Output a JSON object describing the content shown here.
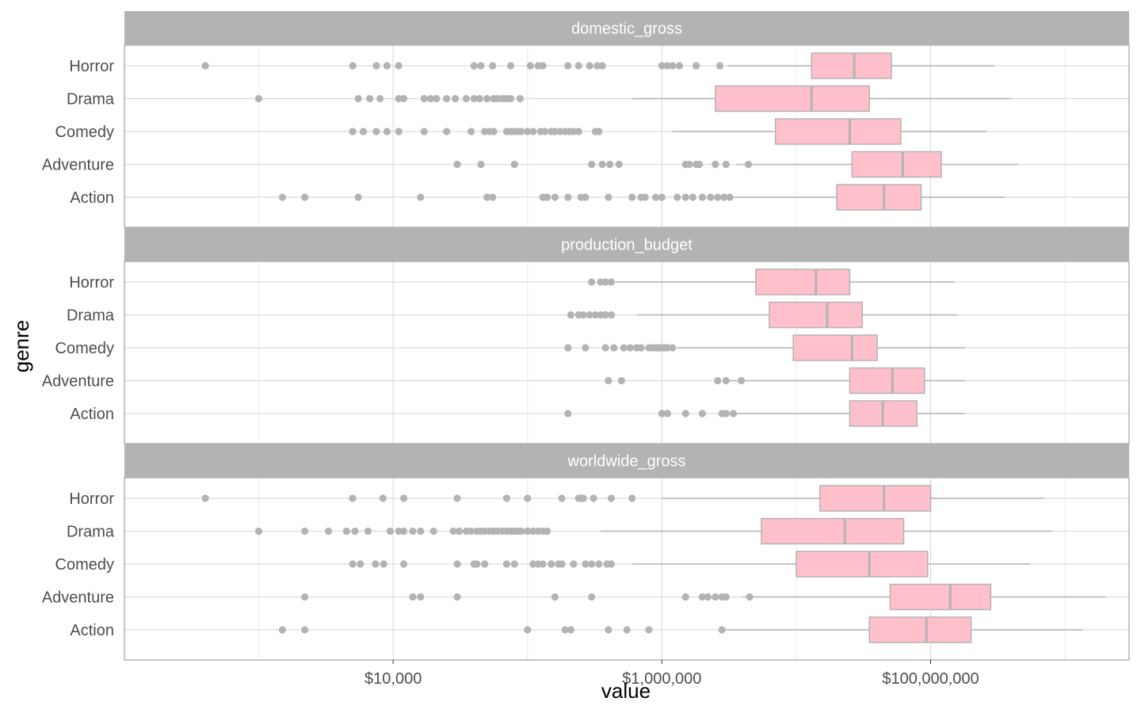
{
  "chart_data": {
    "type": "boxplot",
    "layout": "facets-stacked-vertically",
    "xlabel": "value",
    "ylabel": "genre",
    "x_scale": "log10",
    "x_range": [
      100,
      3000000000
    ],
    "x_ticks": [
      {
        "value": 10000,
        "label": "$10,000"
      },
      {
        "value": 1000000,
        "label": "$1,000,000"
      },
      {
        "value": 100000000,
        "label": "$100,000,000"
      }
    ],
    "x_minor_ticks": [
      1000,
      100000,
      10000000,
      1000000000
    ],
    "categories": [
      "Horror",
      "Drama",
      "Comedy",
      "Adventure",
      "Action"
    ],
    "grid": true,
    "colors": {
      "box_fill": "#FFC0CB",
      "box_line": "#B3B3B3",
      "point": "#B3B3B3",
      "strip": "#B3B3B3",
      "grid": "#DCDCDC",
      "panel_border": "#B3B3B3"
    },
    "facets": [
      {
        "name": "domestic_gross",
        "boxes": [
          {
            "genre": "Horror",
            "lower_whisker": 3100000,
            "q1": 13000000,
            "median": 27000000,
            "q3": 51000000,
            "upper_whisker": 300000000,
            "outliers": [
              400,
              5000,
              7500,
              9000,
              11000,
              40000,
              45000,
              55000,
              75000,
              105000,
              120000,
              130000,
              200000,
              240000,
              290000,
              330000,
              360000,
              1000000,
              1100000,
              1200000,
              1350000,
              1800000,
              2700000
            ]
          },
          {
            "genre": "Drama",
            "lower_whisker": 600000,
            "q1": 2500000,
            "median": 13000000,
            "q3": 35000000,
            "upper_whisker": 400000000,
            "outliers": [
              1000,
              5500,
              6700,
              8000,
              11000,
              12000,
              17000,
              19000,
              21000,
              25000,
              29000,
              35000,
              40000,
              44000,
              50000,
              56000,
              60000,
              65000,
              70000,
              75000,
              88000
            ]
          },
          {
            "genre": "Comedy",
            "lower_whisker": 1200000,
            "q1": 7000000,
            "median": 25000000,
            "q3": 60000000,
            "upper_whisker": 260000000,
            "outliers": [
              5000,
              6000,
              7500,
              9000,
              11000,
              17000,
              25000,
              38000,
              48000,
              52000,
              56000,
              70000,
              75000,
              80000,
              85000,
              90000,
              100000,
              110000,
              125000,
              135000,
              150000,
              160000,
              175000,
              190000,
              205000,
              220000,
              240000,
              320000,
              340000
            ]
          },
          {
            "genre": "Adventure",
            "lower_whisker": 3600000,
            "q1": 26000000,
            "median": 62000000,
            "q3": 120000000,
            "upper_whisker": 450000000,
            "outliers": [
              30000,
              45000,
              80000,
              300000,
              360000,
              410000,
              480000,
              1500000,
              1600000,
              1800000,
              1900000,
              2500000,
              3000000,
              4400000
            ]
          },
          {
            "genre": "Action",
            "lower_whisker": 2900000,
            "q1": 20000000,
            "median": 45000000,
            "q3": 85000000,
            "upper_whisker": 360000000,
            "outliers": [
              1500,
              2200,
              5500,
              16000,
              50000,
              55000,
              130000,
              140000,
              160000,
              200000,
              250000,
              270000,
              400000,
              600000,
              700000,
              750000,
              900000,
              1000000,
              1300000,
              1500000,
              1700000,
              2000000,
              2300000,
              2600000,
              2900000,
              3200000
            ]
          }
        ]
      },
      {
        "name": "production_budget",
        "boxes": [
          {
            "genre": "Horror",
            "lower_whisker": 450000,
            "q1": 5000000,
            "median": 14000000,
            "q3": 25000000,
            "upper_whisker": 150000000,
            "outliers": [
              300000,
              350000,
              380000,
              420000
            ]
          },
          {
            "genre": "Drama",
            "lower_whisker": 660000,
            "q1": 6300000,
            "median": 17000000,
            "q3": 31000000,
            "upper_whisker": 160000000,
            "outliers": [
              210000,
              240000,
              260000,
              290000,
              320000,
              350000,
              380000,
              420000
            ]
          },
          {
            "genre": "Comedy",
            "lower_whisker": 1300000,
            "q1": 9500000,
            "median": 26000000,
            "q3": 40000000,
            "upper_whisker": 180000000,
            "outliers": [
              200000,
              270000,
              380000,
              440000,
              520000,
              580000,
              650000,
              700000,
              800000,
              850000,
              900000,
              950000,
              1000000,
              1050000,
              1100000,
              1200000
            ]
          },
          {
            "genre": "Adventure",
            "lower_whisker": 3000000,
            "q1": 25000000,
            "median": 52000000,
            "q3": 90000000,
            "upper_whisker": 180000000,
            "outliers": [
              400000,
              500000,
              2600000,
              3000000,
              3900000
            ]
          },
          {
            "genre": "Action",
            "lower_whisker": 3100000,
            "q1": 25000000,
            "median": 44000000,
            "q3": 79000000,
            "upper_whisker": 180000000,
            "outliers": [
              200000,
              1000000,
              1100000,
              1500000,
              2000000,
              2800000,
              3000000,
              3400000
            ]
          }
        ]
      },
      {
        "name": "worldwide_gross",
        "boxes": [
          {
            "genre": "Horror",
            "lower_whisker": 1000000,
            "q1": 15000000,
            "median": 45000000,
            "q3": 100000000,
            "upper_whisker": 700000000,
            "outliers": [
              400,
              5000,
              8400,
              12000,
              30000,
              70000,
              100000,
              180000,
              240000,
              250000,
              260000,
              310000,
              420000,
              600000
            ]
          },
          {
            "genre": "Drama",
            "lower_whisker": 350000,
            "q1": 5500000,
            "median": 23000000,
            "q3": 63000000,
            "upper_whisker": 800000000,
            "outliers": [
              1000,
              2200,
              3300,
              4500,
              5200,
              6500,
              9500,
              11000,
              12000,
              14000,
              16000,
              20000,
              28000,
              31000,
              35000,
              38000,
              42000,
              45000,
              48000,
              52000,
              56000,
              60000,
              65000,
              70000,
              75000,
              80000,
              85000,
              90000,
              100000,
              110000,
              120000,
              130000,
              140000
            ]
          },
          {
            "genre": "Comedy",
            "lower_whisker": 600000,
            "q1": 10000000,
            "median": 35000000,
            "q3": 95000000,
            "upper_whisker": 550000000,
            "outliers": [
              5000,
              5700,
              7400,
              8500,
              12000,
              30000,
              40000,
              42000,
              48000,
              70000,
              80000,
              110000,
              120000,
              130000,
              150000,
              170000,
              180000,
              220000,
              270000,
              300000,
              340000,
              390000,
              420000
            ]
          },
          {
            "genre": "Adventure",
            "lower_whisker": 4000000,
            "q1": 50000000,
            "median": 140000000,
            "q3": 280000000,
            "upper_whisker": 2000000000,
            "outliers": [
              2200,
              14000,
              16000,
              30000,
              160000,
              300000,
              1500000,
              2000000,
              2200000,
              2500000,
              2800000,
              3000000,
              4500000
            ]
          },
          {
            "genre": "Action",
            "lower_whisker": 2700000,
            "q1": 35000000,
            "median": 93000000,
            "q3": 200000000,
            "upper_whisker": 1350000000,
            "outliers": [
              1500,
              2200,
              100000,
              190000,
              210000,
              400000,
              550000,
              800000,
              2800000
            ]
          }
        ]
      }
    ]
  }
}
